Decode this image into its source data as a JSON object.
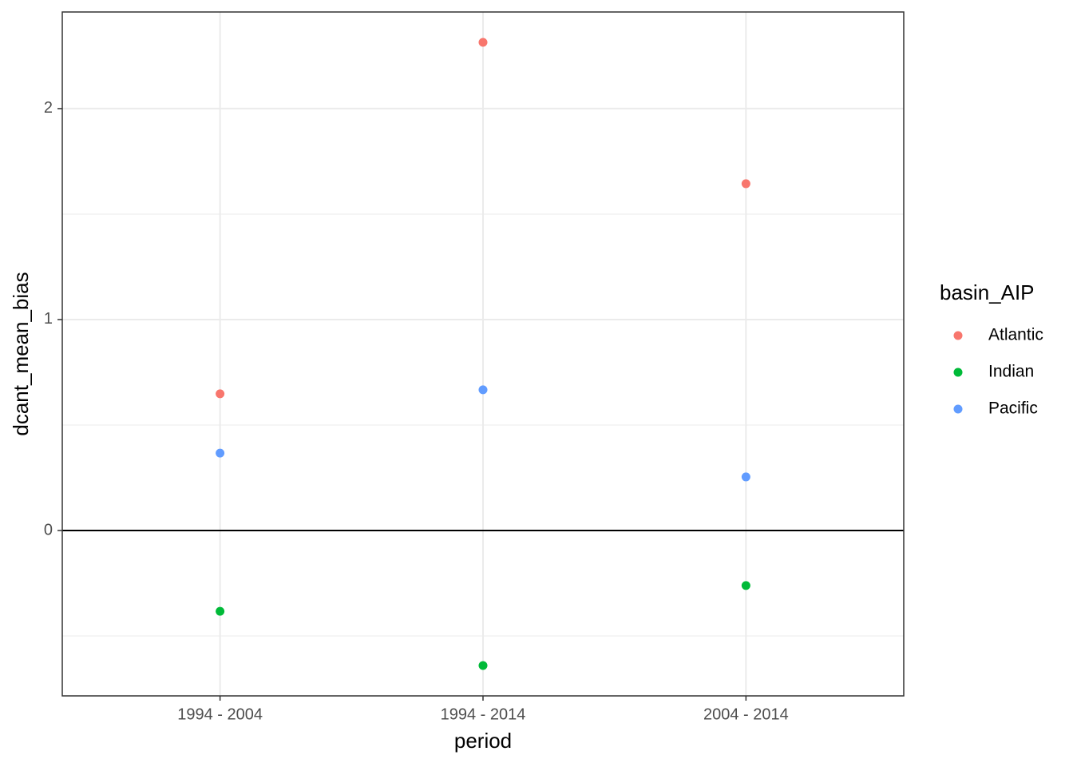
{
  "chart_data": {
    "type": "scatter",
    "x_label": "period",
    "y_label": "dcant_mean_bias",
    "categories": [
      "1994 - 2004",
      "1994 - 2014",
      "2004 - 2014"
    ],
    "series": [
      {
        "name": "Atlantic",
        "color": "#F8766D",
        "values": [
          0.648,
          2.314,
          1.644
        ]
      },
      {
        "name": "Indian",
        "color": "#00BA38",
        "values": [
          -0.383,
          -0.64,
          -0.261
        ]
      },
      {
        "name": "Pacific",
        "color": "#619CFF",
        "values": [
          0.367,
          0.667,
          0.254
        ]
      }
    ],
    "ylim": [
      -0.784,
      2.458
    ],
    "yticks": [
      0,
      1,
      2
    ],
    "grid": true,
    "hline": 0,
    "legend_title": "basin_AIP",
    "legend_position": "right"
  }
}
